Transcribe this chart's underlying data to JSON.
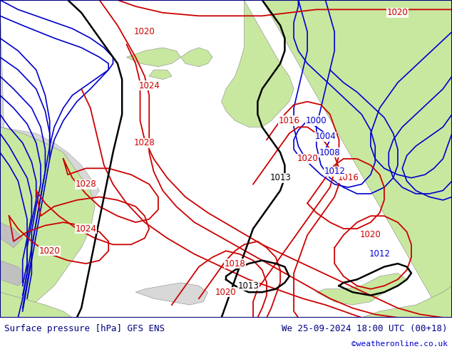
{
  "title_left": "Surface pressure [hPa] GFS ENS",
  "title_right": "We 25-09-2024 18:00 UTC (00+18)",
  "credit": "©weatheronline.co.uk",
  "ocean_color": "#d0d0d0",
  "land_color": "#c8e8a0",
  "coast_color": "#888888",
  "text_color_bottom": "#000080",
  "credit_color": "#0000cc",
  "RED": "#cc0000",
  "BLUE": "#0000cc",
  "BLACK": "#000000",
  "figsize": [
    6.34,
    4.9
  ],
  "dpi": 100
}
